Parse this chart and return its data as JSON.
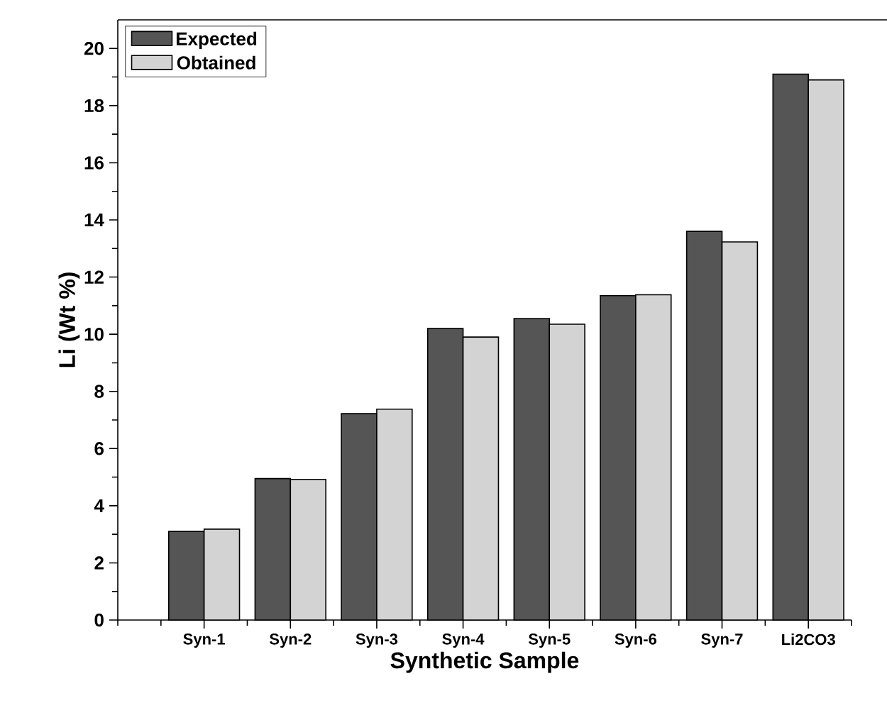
{
  "chart_data": {
    "type": "bar",
    "xlabel": "Synthetic Sample",
    "ylabel": "Li (Wt %)",
    "categories": [
      "Syn-1",
      "Syn-2",
      "Syn-3",
      "Syn-4",
      "Syn-5",
      "Syn-6",
      "Syn-7",
      "Li2CO3"
    ],
    "series": [
      {
        "name": "Expected",
        "color": "#555555",
        "values": [
          3.1,
          4.95,
          7.22,
          10.2,
          10.55,
          11.35,
          13.6,
          19.1
        ]
      },
      {
        "name": "Obtained",
        "color": "#d3d3d3",
        "values": [
          3.18,
          4.92,
          7.38,
          9.9,
          10.35,
          11.38,
          13.23,
          18.9
        ]
      }
    ],
    "ylim": [
      0,
      21
    ],
    "yticks": [
      0,
      2,
      4,
      6,
      8,
      10,
      12,
      14,
      16,
      18,
      20
    ],
    "legend": "top left",
    "grid": false
  }
}
